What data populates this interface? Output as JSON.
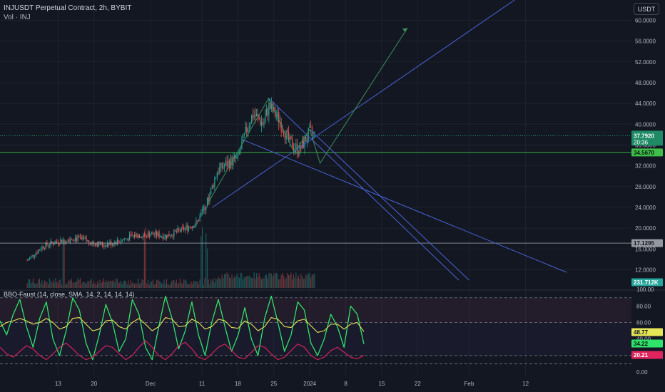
{
  "header": {
    "symbol_line": "INJUSDT Perpetual Contract, 2h, BYBIT",
    "volume_line": "Vol · INJ",
    "currency_button": "USDT"
  },
  "oscillator": {
    "title": "BBO-Faust (14, close, SMA, 14, 2, 14, 14, 14)"
  },
  "colors": {
    "background": "#131722",
    "grid": "#1e222d",
    "candle_up": "#26a69a",
    "candle_down": "#ef5350",
    "trendline": "#4a63d6",
    "path_line": "#3c8f5a",
    "fast_line": "#2fe26a",
    "signal_line": "#e6e657",
    "slow_line": "#e0245e"
  },
  "chart_data": [
    {
      "type": "candlestick",
      "title": "INJUSDT Perpetual Contract, 2h, BYBIT",
      "x_ticks": [
        "13",
        "20",
        "Dec",
        "11",
        "18",
        "25",
        "2024",
        "8",
        "15",
        "22",
        "Feb",
        "12"
      ],
      "y_ticks": [
        "60.0000",
        "56.0000",
        "52.0000",
        "48.0000",
        "44.0000",
        "40.0000",
        "36.0000",
        "32.0000",
        "28.0000",
        "24.0000",
        "20.0000",
        "16.0000",
        "12.0000"
      ],
      "ylim": [
        10,
        62
      ],
      "price_labels": [
        {
          "value": "37.7920",
          "sub": "20:36",
          "role": "last"
        },
        {
          "value": "34.5670",
          "role": "level"
        },
        {
          "value": "17.1295",
          "role": "level"
        },
        {
          "value": "231.712K",
          "role": "volume"
        }
      ],
      "price_path": [
        {
          "x": "Nov 7",
          "y": 13.8
        },
        {
          "x": "Nov 10",
          "y": 16.5
        },
        {
          "x": "Nov 13",
          "y": 17.5
        },
        {
          "x": "Nov 16",
          "y": 18.2
        },
        {
          "x": "Nov 19",
          "y": 17.4
        },
        {
          "x": "Nov 22",
          "y": 16.8
        },
        {
          "x": "Nov 25",
          "y": 17.6
        },
        {
          "x": "Nov 28",
          "y": 18.6
        },
        {
          "x": "Dec 1",
          "y": 18.9
        },
        {
          "x": "Dec 4",
          "y": 18.5
        },
        {
          "x": "Dec 7",
          "y": 19.6
        },
        {
          "x": "Dec 10",
          "y": 21.0
        },
        {
          "x": "Dec 12",
          "y": 25.0
        },
        {
          "x": "Dec 14",
          "y": 31.0
        },
        {
          "x": "Dec 16",
          "y": 32.5
        },
        {
          "x": "Dec 18",
          "y": 33.5
        },
        {
          "x": "Dec 20",
          "y": 40.0
        },
        {
          "x": "Dec 21",
          "y": 42.0
        },
        {
          "x": "Dec 23",
          "y": 40.0
        },
        {
          "x": "Dec 24",
          "y": 43.5
        },
        {
          "x": "Dec 26",
          "y": 41.0
        },
        {
          "x": "Dec 28",
          "y": 36.5
        },
        {
          "x": "Dec 30",
          "y": 35.0
        },
        {
          "x": "Jan 1",
          "y": 38.5
        },
        {
          "x": "Jan 2",
          "y": 37.8
        }
      ],
      "volume_spikes": [
        "Nov 14",
        "Nov 30",
        "Dec 11",
        "Dec 12"
      ],
      "trendlines": [
        {
          "from": {
            "x": "Dec 13",
            "y": 24.0
          },
          "to": {
            "x": "Feb 10",
            "y": 64.0
          }
        },
        {
          "from": {
            "x": "Dec 19",
            "y": 37.0
          },
          "to": {
            "x": "Feb 20",
            "y": 11.5
          }
        },
        {
          "from": {
            "x": "Dec 24",
            "y": 45.0
          },
          "to": {
            "x": "Jan 30",
            "y": 10.0
          }
        },
        {
          "from": {
            "x": "Jan 1",
            "y": 39.0
          },
          "to": {
            "x": "Feb 1",
            "y": 10.0
          }
        }
      ],
      "projection_path": [
        {
          "x": "Dec 12",
          "y": 24.5
        },
        {
          "x": "Dec 24",
          "y": 45.0
        },
        {
          "x": "Dec 29",
          "y": 34.5
        },
        {
          "x": "Jan 1",
          "y": 39.0
        },
        {
          "x": "Jan 3",
          "y": 32.5
        },
        {
          "x": "Jan 20",
          "y": 58.5
        }
      ],
      "horizontal_levels": [
        37.792,
        34.567,
        17.1295
      ]
    },
    {
      "type": "line",
      "title": "BBO-Faust (14, close, SMA, 14, 2, 14, 14, 14)",
      "y_ticks": [
        "100.00",
        "80.00",
        "60.00",
        "40.00",
        "20.00",
        "0.00"
      ],
      "ylim": [
        -5,
        100
      ],
      "band_levels": [
        90,
        60,
        20,
        10
      ],
      "value_labels": [
        {
          "value": "48.77",
          "series": "signal"
        },
        {
          "value": "34.22",
          "series": "fast"
        },
        {
          "value": "20.21",
          "series": "slow"
        }
      ],
      "series": [
        {
          "role": "fast",
          "values": [
            62,
            45,
            70,
            88,
            55,
            30,
            65,
            85,
            40,
            20,
            50,
            90,
            75,
            35,
            15,
            45,
            82,
            60,
            25,
            40,
            88,
            70,
            30,
            15,
            55,
            92,
            65,
            28,
            50,
            85,
            45,
            20,
            60,
            88,
            55,
            25,
            45,
            78,
            40,
            20,
            65,
            92,
            60,
            25,
            45,
            85,
            75,
            35,
            20,
            40,
            70,
            55,
            30,
            80,
            70,
            34
          ]
        },
        {
          "role": "signal",
          "values": [
            55,
            60,
            62,
            65,
            62,
            58,
            60,
            65,
            60,
            52,
            55,
            65,
            66,
            58,
            50,
            52,
            62,
            63,
            55,
            52,
            60,
            65,
            58,
            50,
            55,
            66,
            64,
            55,
            56,
            64,
            60,
            52,
            55,
            64,
            62,
            54,
            53,
            62,
            58,
            50,
            55,
            66,
            64,
            55,
            54,
            62,
            64,
            56,
            48,
            50,
            58,
            58,
            52,
            58,
            60,
            49
          ]
        },
        {
          "role": "slow",
          "values": [
            30,
            22,
            18,
            25,
            32,
            28,
            20,
            15,
            22,
            30,
            35,
            28,
            20,
            15,
            18,
            25,
            32,
            30,
            22,
            15,
            20,
            30,
            38,
            30,
            20,
            15,
            22,
            32,
            36,
            28,
            18,
            15,
            22,
            30,
            34,
            26,
            18,
            16,
            24,
            32,
            30,
            22,
            15,
            18,
            26,
            34,
            30,
            20,
            15,
            18,
            26,
            30,
            24,
            18,
            16,
            20
          ]
        }
      ]
    }
  ]
}
